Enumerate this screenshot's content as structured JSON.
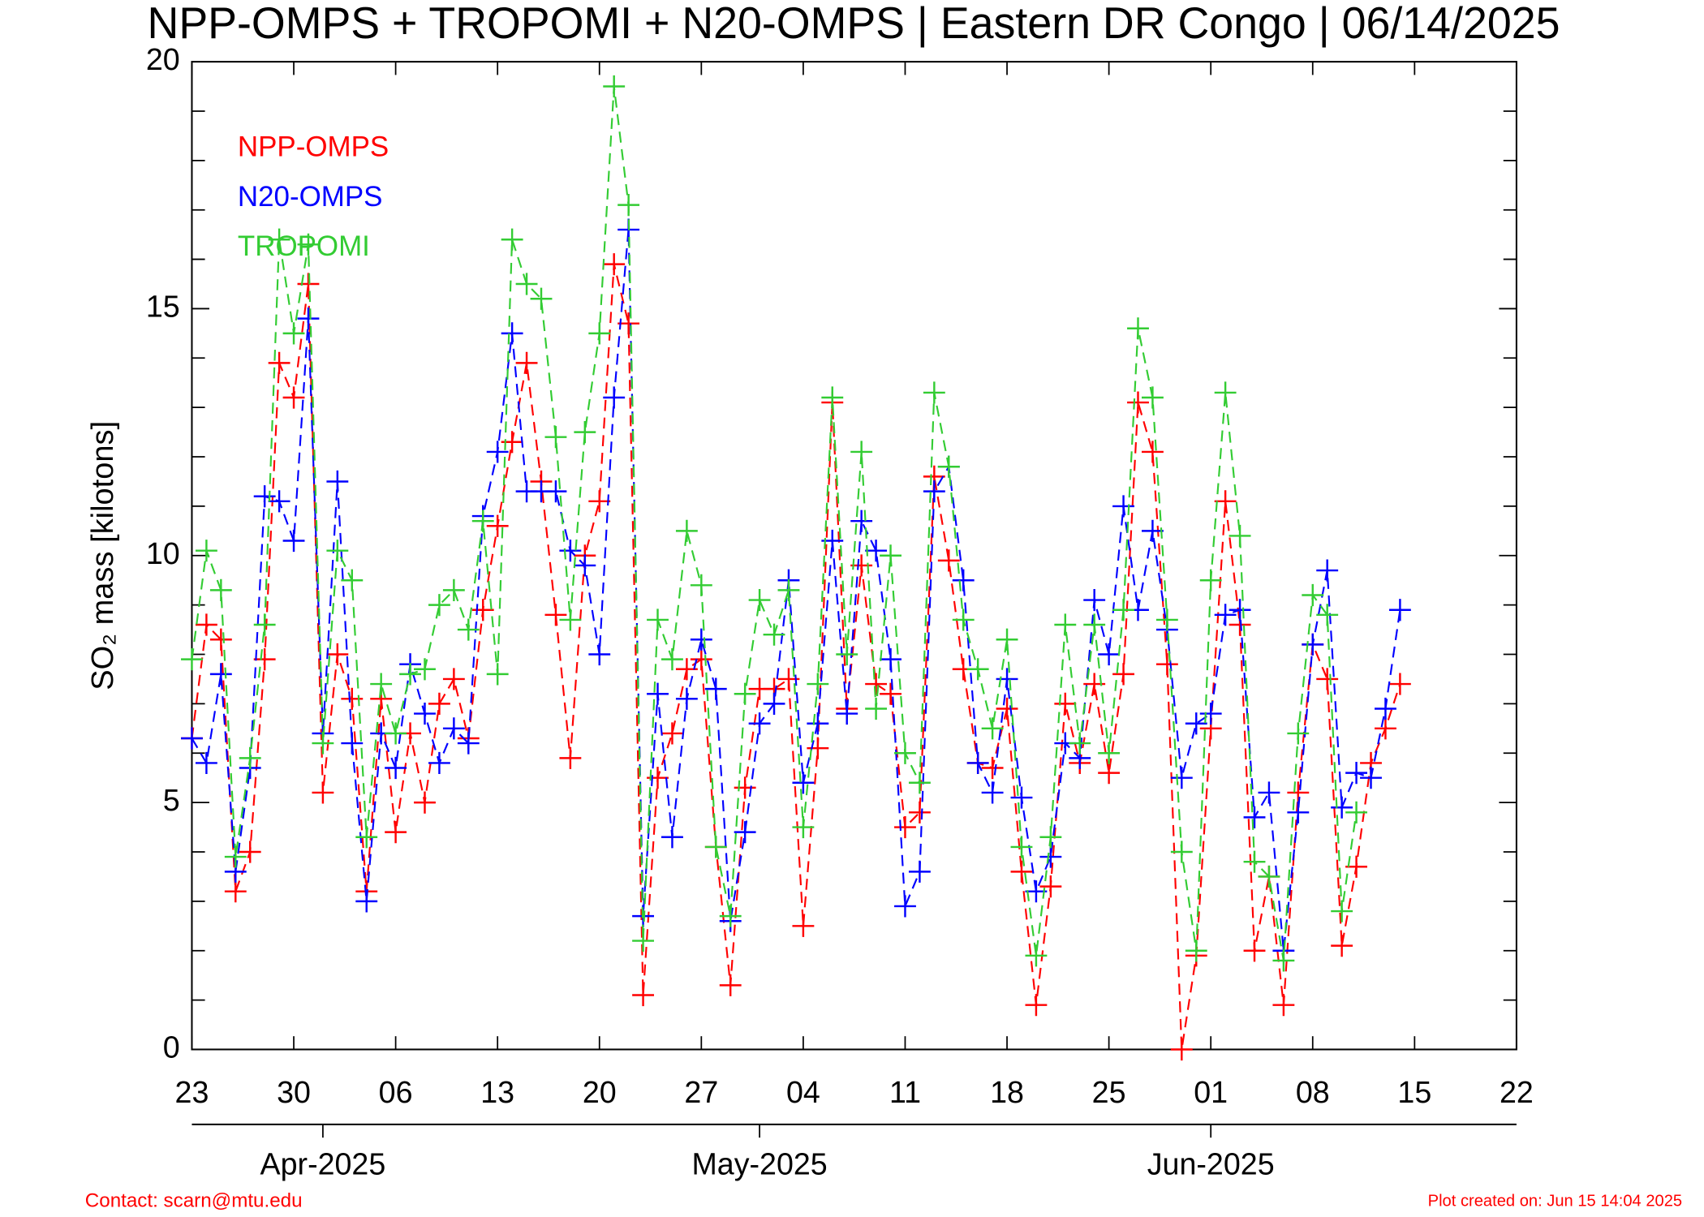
{
  "chart_data": {
    "type": "line",
    "title": "NPP-OMPS + TROPOMI + N20-OMPS | Eastern DR Congo | 06/14/2025",
    "ylabel": "SO₂ mass [kilotons]",
    "x": [
      "2025-03-23",
      "2025-03-24",
      "2025-03-25",
      "2025-03-26",
      "2025-03-27",
      "2025-03-28",
      "2025-03-29",
      "2025-03-30",
      "2025-03-31",
      "2025-04-01",
      "2025-04-02",
      "2025-04-03",
      "2025-04-04",
      "2025-04-05",
      "2025-04-06",
      "2025-04-07",
      "2025-04-08",
      "2025-04-09",
      "2025-04-10",
      "2025-04-11",
      "2025-04-12",
      "2025-04-13",
      "2025-04-14",
      "2025-04-15",
      "2025-04-16",
      "2025-04-17",
      "2025-04-18",
      "2025-04-19",
      "2025-04-20",
      "2025-04-21",
      "2025-04-22",
      "2025-04-23",
      "2025-04-24",
      "2025-04-25",
      "2025-04-26",
      "2025-04-27",
      "2025-04-28",
      "2025-04-29",
      "2025-04-30",
      "2025-05-01",
      "2025-05-02",
      "2025-05-03",
      "2025-05-04",
      "2025-05-05",
      "2025-05-06",
      "2025-05-07",
      "2025-05-08",
      "2025-05-09",
      "2025-05-10",
      "2025-05-11",
      "2025-05-12",
      "2025-05-13",
      "2025-05-14",
      "2025-05-15",
      "2025-05-16",
      "2025-05-17",
      "2025-05-18",
      "2025-05-19",
      "2025-05-20",
      "2025-05-21",
      "2025-05-22",
      "2025-05-23",
      "2025-05-24",
      "2025-05-25",
      "2025-05-26",
      "2025-05-27",
      "2025-05-28",
      "2025-05-29",
      "2025-05-30",
      "2025-05-31",
      "2025-06-01",
      "2025-06-02",
      "2025-06-03",
      "2025-06-04",
      "2025-06-05",
      "2025-06-06",
      "2025-06-07",
      "2025-06-08",
      "2025-06-09",
      "2025-06-10",
      "2025-06-11",
      "2025-06-12",
      "2025-06-13",
      "2025-06-14"
    ],
    "series": [
      {
        "name": "NPP-OMPS",
        "color": "#ff0000",
        "values": [
          6.3,
          8.6,
          8.3,
          3.2,
          4.0,
          7.9,
          13.9,
          13.2,
          15.5,
          5.2,
          8.0,
          7.1,
          3.2,
          7.1,
          4.4,
          6.4,
          5.0,
          7.0,
          7.5,
          6.3,
          8.9,
          10.6,
          12.3,
          13.9,
          11.5,
          8.8,
          5.9,
          10.0,
          11.1,
          15.9,
          14.7,
          1.1,
          5.5,
          6.4,
          7.7,
          7.9,
          4.1,
          1.3,
          5.3,
          7.3,
          7.3,
          7.5,
          2.5,
          6.1,
          13.1,
          6.9,
          9.8,
          7.4,
          7.2,
          4.5,
          4.8,
          11.6,
          9.9,
          7.7,
          5.8,
          5.7,
          6.9,
          3.6,
          0.9,
          3.3,
          7.0,
          5.8,
          7.4,
          5.6,
          7.6,
          13.1,
          12.1,
          7.8,
          0.0,
          1.9,
          6.5,
          11.1,
          8.6,
          2.0,
          3.5,
          0.9,
          5.2,
          8.2,
          7.5,
          2.1,
          3.7,
          5.8,
          6.5,
          7.4
        ]
      },
      {
        "name": "N20-OMPS",
        "color": "#0000ff",
        "values": [
          6.3,
          5.8,
          7.6,
          3.6,
          5.7,
          11.2,
          11.1,
          10.3,
          14.8,
          6.4,
          11.5,
          6.2,
          3.0,
          6.4,
          5.7,
          7.8,
          6.8,
          5.8,
          6.5,
          6.2,
          10.8,
          12.1,
          14.5,
          11.3,
          11.3,
          11.3,
          10.1,
          9.8,
          8.0,
          13.2,
          16.6,
          2.7,
          7.2,
          4.3,
          7.1,
          8.3,
          7.3,
          2.6,
          4.4,
          6.6,
          7.0,
          9.5,
          5.4,
          6.6,
          10.3,
          6.8,
          10.7,
          10.1,
          7.9,
          2.9,
          3.6,
          11.3,
          11.8,
          9.5,
          5.8,
          5.2,
          7.5,
          5.1,
          3.2,
          3.9,
          6.2,
          5.9,
          9.1,
          8.0,
          11.0,
          8.9,
          10.5,
          8.5,
          5.5,
          6.6,
          6.8,
          8.8,
          8.9,
          4.7,
          5.2,
          2.0,
          4.8,
          8.2,
          9.7,
          4.9,
          5.6,
          5.5,
          6.9,
          8.9
        ]
      },
      {
        "name": "TROPOMI",
        "color": "#33cc33",
        "values": [
          7.9,
          10.1,
          9.3,
          3.9,
          5.9,
          8.6,
          16.4,
          14.5,
          16.3,
          6.2,
          10.1,
          9.5,
          4.3,
          7.4,
          6.4,
          7.6,
          7.7,
          9.0,
          9.3,
          8.5,
          10.7,
          7.6,
          16.4,
          15.5,
          15.2,
          12.4,
          8.7,
          12.5,
          14.5,
          19.5,
          17.1,
          2.2,
          8.7,
          7.9,
          10.5,
          9.4,
          4.1,
          2.7,
          7.2,
          9.1,
          8.4,
          9.3,
          4.5,
          7.4,
          13.2,
          8.0,
          12.1,
          6.9,
          10.0,
          6.0,
          5.4,
          13.3,
          11.8,
          8.7,
          7.7,
          6.5,
          8.3,
          4.1,
          1.9,
          4.3,
          8.6,
          6.2,
          8.6,
          6.0,
          8.9,
          14.6,
          13.2,
          8.7,
          4.0,
          2.0,
          9.5,
          13.3,
          10.4,
          3.8,
          3.5,
          1.8,
          6.4,
          9.2,
          8.8,
          2.8,
          4.8,
          null,
          null,
          null
        ]
      }
    ],
    "xlim": [
      "2025-03-23",
      "2025-06-22"
    ],
    "xticks": [
      {
        "value": "2025-03-23",
        "label": "23"
      },
      {
        "value": "2025-03-30",
        "label": "30"
      },
      {
        "value": "2025-04-06",
        "label": "06"
      },
      {
        "value": "2025-04-13",
        "label": "13"
      },
      {
        "value": "2025-04-20",
        "label": "20"
      },
      {
        "value": "2025-04-27",
        "label": "27"
      },
      {
        "value": "2025-05-04",
        "label": "04"
      },
      {
        "value": "2025-05-11",
        "label": "11"
      },
      {
        "value": "2025-05-18",
        "label": "18"
      },
      {
        "value": "2025-05-25",
        "label": "25"
      },
      {
        "value": "2025-06-01",
        "label": "01"
      },
      {
        "value": "2025-06-08",
        "label": "08"
      },
      {
        "value": "2025-06-15",
        "label": "15"
      },
      {
        "value": "2025-06-22",
        "label": "22"
      }
    ],
    "month_ticks": [
      {
        "value": "2025-04-01",
        "label": "Apr-2025"
      },
      {
        "value": "2025-05-01",
        "label": "May-2025"
      },
      {
        "value": "2025-06-01",
        "label": "Jun-2025"
      }
    ],
    "ylim": [
      0,
      20
    ],
    "yticks": [
      0,
      5,
      10,
      15,
      20
    ],
    "yminorticks": [
      1,
      2,
      3,
      4,
      6,
      7,
      8,
      9,
      11,
      12,
      13,
      14,
      16,
      17,
      18,
      19
    ],
    "legend": "upper left",
    "contact": "Contact: scarn@mtu.edu",
    "created": "Plot created on: Jun 15 14:04 2025"
  }
}
